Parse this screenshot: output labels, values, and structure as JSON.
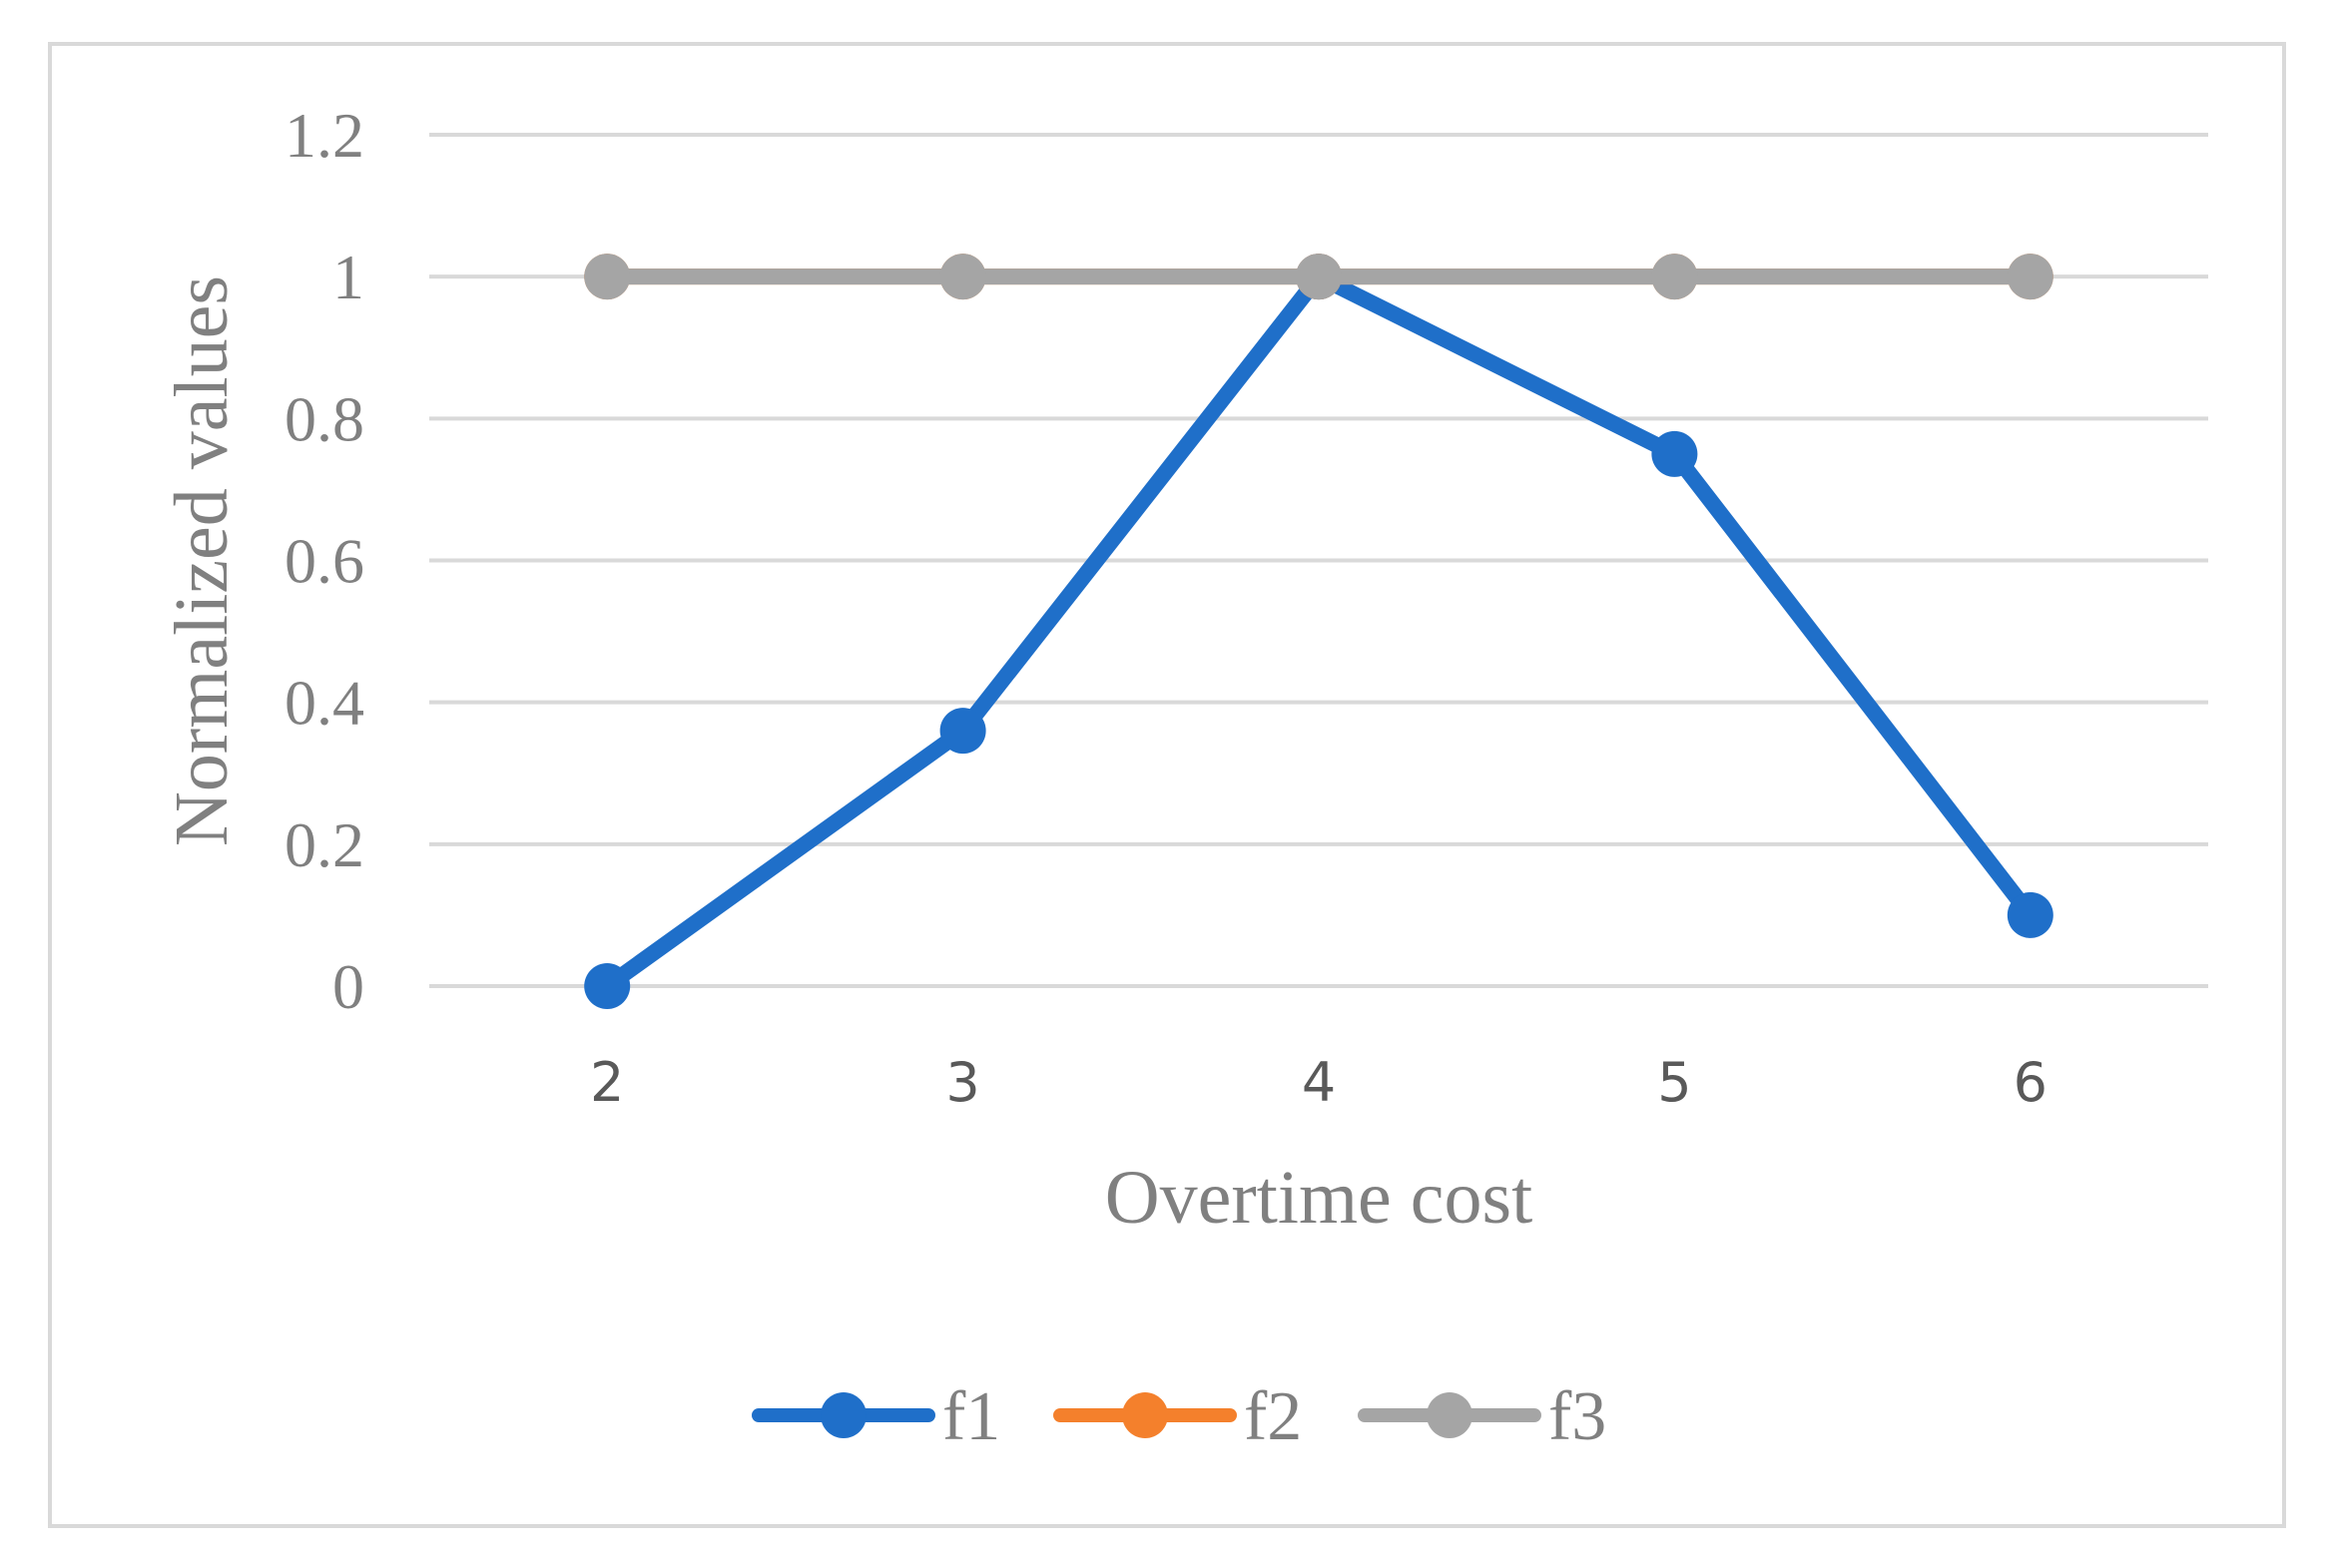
{
  "chart_data": {
    "type": "line",
    "title": "",
    "xlabel": "Overtime cost",
    "ylabel": "Normalized values",
    "categories": [
      "2",
      "3",
      "4",
      "5",
      "6"
    ],
    "ylim": [
      0,
      1.2
    ],
    "yticks": [
      "0",
      "0.2",
      "0.4",
      "0.6",
      "0.8",
      "1",
      "1.2"
    ],
    "grid": "horizontal",
    "legend_position": "bottom",
    "series": [
      {
        "name": "f1",
        "color": "#1f6fc9",
        "values": [
          0,
          0.36,
          1,
          0.75,
          0.1
        ]
      },
      {
        "name": "f2",
        "color": "#f4802c",
        "values": [
          1,
          1,
          1,
          1,
          1
        ]
      },
      {
        "name": "f3",
        "color": "#a5a5a5",
        "values": [
          1,
          1,
          1,
          1,
          1
        ]
      }
    ]
  }
}
